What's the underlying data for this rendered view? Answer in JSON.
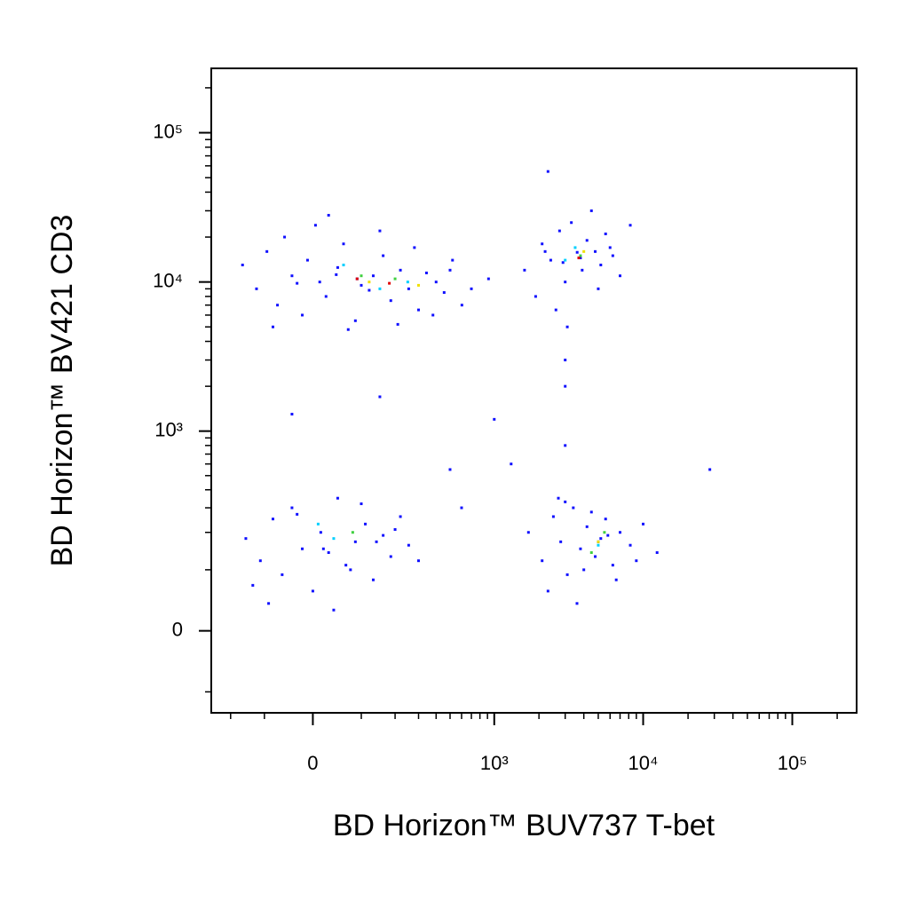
{
  "chart_data": {
    "type": "scatter",
    "xlabel": "BD Horizon™ BUV737 T-bet",
    "ylabel": "BD Horizon™ BV421 CD3",
    "xscale": "biexponential",
    "yscale": "biexponential",
    "xlim": [
      -280,
      270000
    ],
    "ylim": [
      -150,
      270000
    ],
    "xticks": [
      0,
      {
        "value": 1000,
        "label": "10³"
      },
      {
        "value": 10000,
        "label": "10⁴"
      },
      {
        "value": 100000,
        "label": "10⁵"
      }
    ],
    "yticks": [
      0,
      {
        "value": 1000,
        "label": "10³"
      },
      {
        "value": 10000,
        "label": "10⁴"
      },
      {
        "value": 100000,
        "label": "10⁵"
      }
    ],
    "xminor": [
      -200,
      -100,
      100,
      200,
      300,
      400,
      500,
      600,
      700,
      800,
      900,
      2000,
      3000,
      4000,
      5000,
      6000,
      7000,
      8000,
      9000,
      20000,
      30000,
      40000,
      50000,
      60000,
      70000,
      80000,
      90000,
      200000
    ],
    "yminor": [
      -100,
      100,
      200,
      300,
      400,
      500,
      600,
      700,
      800,
      900,
      2000,
      3000,
      4000,
      5000,
      6000,
      7000,
      8000,
      9000,
      20000,
      30000,
      40000,
      50000,
      60000,
      70000,
      80000,
      90000,
      200000
    ],
    "series": [
      {
        "color": "#1010ff",
        "x": [
          -160,
          -120,
          -94,
          -70,
          -55,
          -40,
          -20,
          -10,
          5,
          13,
          25,
          48,
          60,
          86,
          100,
          131,
          160,
          185,
          220,
          254,
          300,
          342,
          400,
          455,
          520,
          603,
          700,
          915,
          -80,
          30,
          70,
          150,
          210,
          280,
          380,
          500,
          -30,
          90,
          120,
          45,
          1600,
          1900,
          2100,
          2400,
          2750,
          3000,
          3300,
          3610,
          3900,
          4200,
          4770,
          5200,
          5600,
          6260,
          7000,
          8200,
          2600,
          3100,
          4500,
          5000,
          2200,
          3800,
          6000,
          2900,
          -150,
          -110,
          -80,
          -60,
          -40,
          -20,
          0,
          15,
          30,
          48,
          65,
          86,
          110,
          131,
          160,
          185,
          220,
          254,
          300,
          -90,
          -30,
          40,
          100,
          200,
          -130,
          20,
          75,
          140,
          1700,
          2100,
          2500,
          2800,
          3100,
          3400,
          3800,
          4200,
          4770,
          5200,
          5600,
          6260,
          7000,
          8200,
          10000,
          12400,
          2300,
          3000,
          3600,
          4500,
          5800,
          6600,
          9000,
          2700,
          4000,
          5000,
          2300,
          28000,
          1000,
          600,
          -40,
          3000,
          3000,
          3000,
          150,
          500,
          1300
        ],
        "y": [
          13000,
          9000,
          16000,
          7000,
          20000,
          11000,
          6000,
          14000,
          24000,
          10000,
          8000,
          12500,
          18000,
          5500,
          9500,
          11000,
          15000,
          7500,
          12000,
          9000,
          6500,
          11500,
          10000,
          8500,
          14000,
          7000,
          9000,
          10500,
          5000,
          28000,
          4800,
          22000,
          5200,
          17000,
          6000,
          12000,
          9800,
          10500,
          8800,
          11200,
          12000,
          8000,
          18000,
          14000,
          22000,
          10000,
          25000,
          15800,
          12000,
          19000,
          16000,
          13000,
          21000,
          15000,
          11000,
          24000,
          6500,
          5000,
          30000,
          9000,
          16000,
          14500,
          17000,
          13500,
          180,
          120,
          250,
          90,
          300,
          150,
          60,
          200,
          140,
          350,
          110,
          170,
          230,
          80,
          190,
          130,
          260,
          160,
          120,
          40,
          270,
          30,
          320,
          210,
          70,
          150,
          100,
          170,
          200,
          120,
          260,
          170,
          90,
          300,
          150,
          220,
          130,
          180,
          250,
          110,
          200,
          160,
          230,
          140,
          60,
          330,
          40,
          280,
          190,
          80,
          120,
          350,
          100,
          170,
          55000,
          550,
          1200,
          300,
          1300,
          3000,
          2000,
          800,
          1700,
          550,
          600
        ]
      },
      {
        "color": "#00d0ff",
        "x": [
          60,
          150,
          3500,
          40,
          5000,
          3000,
          10,
          250
        ],
        "y": [
          13000,
          9000,
          17000,
          180,
          160,
          14000,
          230,
          10000
        ]
      },
      {
        "color": "#40d040",
        "x": [
          100,
          200,
          3800,
          4500,
          80,
          5500
        ],
        "y": [
          11000,
          10500,
          15000,
          140,
          200,
          200
        ]
      },
      {
        "color": "#f0e000",
        "x": [
          120,
          300,
          4000,
          5000
        ],
        "y": [
          10000,
          9500,
          16000,
          170
        ]
      },
      {
        "color": "#e00000",
        "x": [
          90,
          180,
          3700
        ],
        "y": [
          10500,
          9800,
          14500
        ]
      }
    ]
  }
}
